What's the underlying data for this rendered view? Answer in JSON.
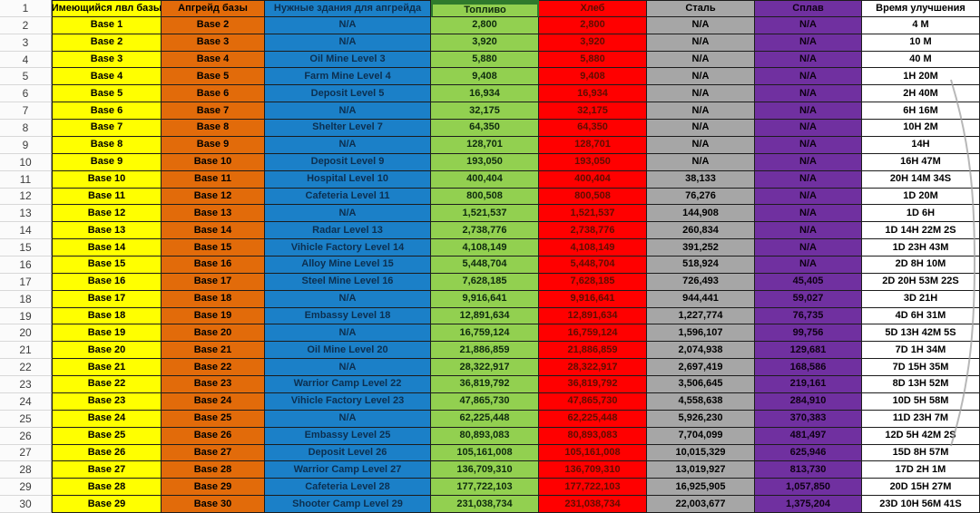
{
  "sheet": {
    "corner_row_number": "1",
    "headers": {
      "current": "Имеющийся лвл базы",
      "upgrade": "Апгрейд базы",
      "building": "Нужные здания для апгрейда",
      "fuel": "Топливо",
      "bread": "Хлеб",
      "steel": "Сталь",
      "alloy": "Сплав",
      "time": "Время улучшения"
    },
    "colors": {
      "current_bg": "#FFFF00",
      "upgrade_bg": "#E26B0A",
      "building_bg": "#1B80C8",
      "fuel_bg": "#92D050",
      "bread_bg": "#FF0000",
      "steel_bg": "#A6A6A6",
      "alloy_bg": "#7030A0",
      "time_bg": "#FFFFFF",
      "fuel_header_border": "#2F7A2C"
    },
    "rows": [
      {
        "n": "2",
        "current": "Base 1",
        "upgrade": "Base 2",
        "building": "N/A",
        "fuel": "2,800",
        "bread": "2,800",
        "steel": "N/A",
        "alloy": "N/A",
        "time": "4 M"
      },
      {
        "n": "3",
        "current": "Base 2",
        "upgrade": "Base 3",
        "building": "N/A",
        "fuel": "3,920",
        "bread": "3,920",
        "steel": "N/A",
        "alloy": "N/A",
        "time": "10 M"
      },
      {
        "n": "4",
        "current": "Base 3",
        "upgrade": "Base 4",
        "building": "Oil Mine Level 3",
        "fuel": "5,880",
        "bread": "5,880",
        "steel": "N/A",
        "alloy": "N/A",
        "time": "40 M"
      },
      {
        "n": "5",
        "current": "Base 4",
        "upgrade": "Base 5",
        "building": "Farm Mine Level 4",
        "fuel": "9,408",
        "bread": "9,408",
        "steel": "N/A",
        "alloy": "N/A",
        "time": "1H 20M"
      },
      {
        "n": "6",
        "current": "Base 5",
        "upgrade": "Base 6",
        "building": "Deposit Level 5",
        "fuel": "16,934",
        "bread": "16,934",
        "steel": "N/A",
        "alloy": "N/A",
        "time": "2H 40M"
      },
      {
        "n": "7",
        "current": "Base 6",
        "upgrade": "Base 7",
        "building": "N/A",
        "fuel": "32,175",
        "bread": "32,175",
        "steel": "N/A",
        "alloy": "N/A",
        "time": "6H 16M"
      },
      {
        "n": "8",
        "current": "Base 7",
        "upgrade": "Base 8",
        "building": "Shelter Level 7",
        "fuel": "64,350",
        "bread": "64,350",
        "steel": "N/A",
        "alloy": "N/A",
        "time": "10H 2M"
      },
      {
        "n": "9",
        "current": "Base 8",
        "upgrade": "Base 9",
        "building": "N/A",
        "fuel": "128,701",
        "bread": "128,701",
        "steel": "N/A",
        "alloy": "N/A",
        "time": "14H"
      },
      {
        "n": "10",
        "current": "Base 9",
        "upgrade": "Base 10",
        "building": "Deposit Level 9",
        "fuel": "193,050",
        "bread": "193,050",
        "steel": "N/A",
        "alloy": "N/A",
        "time": "16H 47M"
      },
      {
        "n": "11",
        "current": "Base 10",
        "upgrade": "Base 11",
        "building": "Hospital Level 10",
        "fuel": "400,404",
        "bread": "400,404",
        "steel": "38,133",
        "alloy": "N/A",
        "time": "20H 14M 34S"
      },
      {
        "n": "12",
        "current": "Base 11",
        "upgrade": "Base 12",
        "building": "Cafeteria Level 11",
        "fuel": "800,508",
        "bread": "800,508",
        "steel": "76,276",
        "alloy": "N/A",
        "time": "1D 20M"
      },
      {
        "n": "13",
        "current": "Base 12",
        "upgrade": "Base 13",
        "building": "N/A",
        "fuel": "1,521,537",
        "bread": "1,521,537",
        "steel": "144,908",
        "alloy": "N/A",
        "time": "1D 6H"
      },
      {
        "n": "14",
        "current": "Base 13",
        "upgrade": "Base 14",
        "building": "Radar Level 13",
        "fuel": "2,738,776",
        "bread": "2,738,776",
        "steel": "260,834",
        "alloy": "N/A",
        "time": "1D 14H 22M 2S"
      },
      {
        "n": "15",
        "current": "Base 14",
        "upgrade": "Base 15",
        "building": "Vihicle Factory Level 14",
        "fuel": "4,108,149",
        "bread": "4,108,149",
        "steel": "391,252",
        "alloy": "N/A",
        "time": "1D 23H 43M"
      },
      {
        "n": "16",
        "current": "Base 15",
        "upgrade": "Base 16",
        "building": "Alloy Mine Level 15",
        "fuel": "5,448,704",
        "bread": "5,448,704",
        "steel": "518,924",
        "alloy": "N/A",
        "time": "2D 8H 10M"
      },
      {
        "n": "17",
        "current": "Base 16",
        "upgrade": "Base 17",
        "building": "Steel Mine Level 16",
        "fuel": "7,628,185",
        "bread": "7,628,185",
        "steel": "726,493",
        "alloy": "45,405",
        "time": "2D 20H 53M 22S"
      },
      {
        "n": "18",
        "current": "Base 17",
        "upgrade": "Base 18",
        "building": "N/A",
        "fuel": "9,916,641",
        "bread": "9,916,641",
        "steel": "944,441",
        "alloy": "59,027",
        "time": "3D 21H"
      },
      {
        "n": "19",
        "current": "Base 18",
        "upgrade": "Base 19",
        "building": "Embassy Level 18",
        "fuel": "12,891,634",
        "bread": "12,891,634",
        "steel": "1,227,774",
        "alloy": "76,735",
        "time": "4D 6H 31M"
      },
      {
        "n": "20",
        "current": "Base 19",
        "upgrade": "Base 20",
        "building": "N/A",
        "fuel": "16,759,124",
        "bread": "16,759,124",
        "steel": "1,596,107",
        "alloy": "99,756",
        "time": "5D 13H 42M 5S"
      },
      {
        "n": "21",
        "current": "Base 20",
        "upgrade": "Base 21",
        "building": "Oil Mine Level 20",
        "fuel": "21,886,859",
        "bread": "21,886,859",
        "steel": "2,074,938",
        "alloy": "129,681",
        "time": "7D 1H 34M"
      },
      {
        "n": "22",
        "current": "Base 21",
        "upgrade": "Base 22",
        "building": "N/A",
        "fuel": "28,322,917",
        "bread": "28,322,917",
        "steel": "2,697,419",
        "alloy": "168,586",
        "time": "7D 15H 35M"
      },
      {
        "n": "23",
        "current": "Base 22",
        "upgrade": "Base 23",
        "building": "Warrior Camp Level 22",
        "fuel": "36,819,792",
        "bread": "36,819,792",
        "steel": "3,506,645",
        "alloy": "219,161",
        "time": "8D 13H 52M"
      },
      {
        "n": "24",
        "current": "Base 23",
        "upgrade": "Base 24",
        "building": "Vihicle Factory Level 23",
        "fuel": "47,865,730",
        "bread": "47,865,730",
        "steel": "4,558,638",
        "alloy": "284,910",
        "time": "10D 5H 58M"
      },
      {
        "n": "25",
        "current": "Base 24",
        "upgrade": "Base 25",
        "building": "N/A",
        "fuel": "62,225,448",
        "bread": "62,225,448",
        "steel": "5,926,230",
        "alloy": "370,383",
        "time": "11D 23H 7M"
      },
      {
        "n": "26",
        "current": "Base 25",
        "upgrade": "Base 26",
        "building": "Embassy Level 25",
        "fuel": "80,893,083",
        "bread": "80,893,083",
        "steel": "7,704,099",
        "alloy": "481,497",
        "time": "12D 5H 42M 2S"
      },
      {
        "n": "27",
        "current": "Base 26",
        "upgrade": "Base 27",
        "building": "Deposit Level 26",
        "fuel": "105,161,008",
        "bread": "105,161,008",
        "steel": "10,015,329",
        "alloy": "625,946",
        "time": "15D 8H 57M"
      },
      {
        "n": "28",
        "current": "Base 27",
        "upgrade": "Base 28",
        "building": "Warrior Camp Level 27",
        "fuel": "136,709,310",
        "bread": "136,709,310",
        "steel": "13,019,927",
        "alloy": "813,730",
        "time": "17D 2H 1M"
      },
      {
        "n": "29",
        "current": "Base 28",
        "upgrade": "Base 29",
        "building": "Cafeteria Level 28",
        "fuel": "177,722,103",
        "bread": "177,722,103",
        "steel": "16,925,905",
        "alloy": "1,057,850",
        "time": "20D 15H 27M"
      },
      {
        "n": "30",
        "current": "Base 29",
        "upgrade": "Base 30",
        "building": "Shooter Camp Level 29",
        "fuel": "231,038,734",
        "bread": "231,038,734",
        "steel": "22,003,677",
        "alloy": "1,375,204",
        "time": "23D 10H 56M 41S"
      }
    ]
  }
}
